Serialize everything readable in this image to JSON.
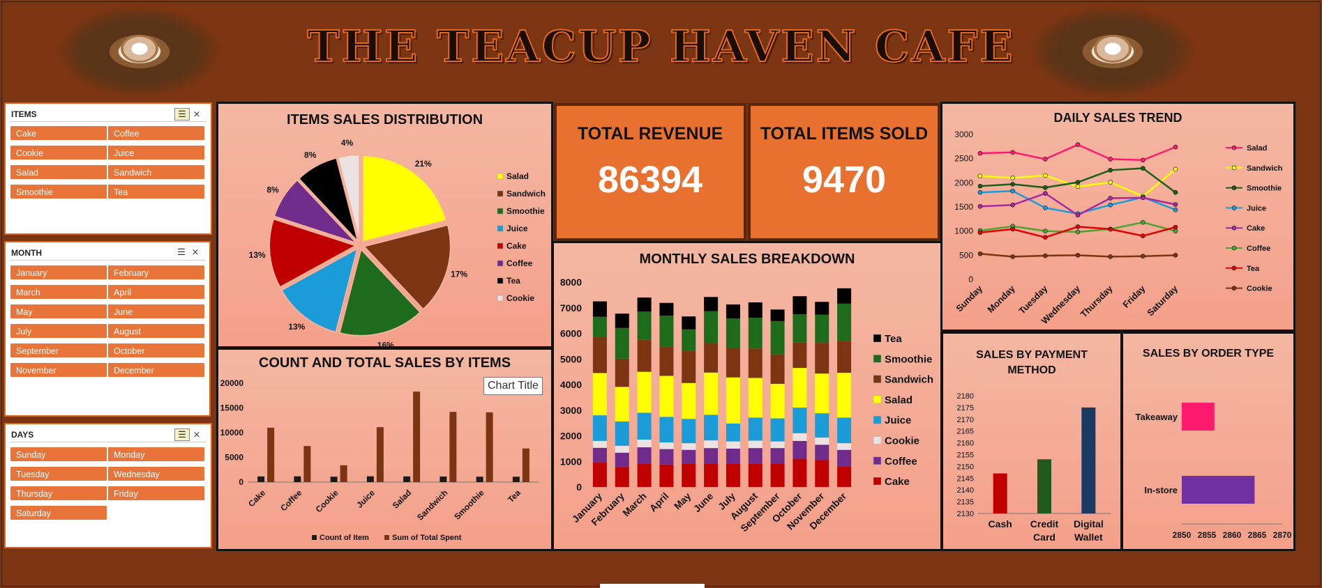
{
  "header": {
    "title": "THE TEACUP HAVEN CAFE"
  },
  "slicers": {
    "items": {
      "label": "ITEMS",
      "options": [
        "Cake",
        "Coffee",
        "Cookie",
        "Juice",
        "Salad",
        "Sandwich",
        "Smoothie",
        "Tea"
      ]
    },
    "month": {
      "label": "MONTH",
      "options": [
        "January",
        "February",
        "March",
        "April",
        "May",
        "June",
        "July",
        "August",
        "September",
        "October",
        "November",
        "December"
      ]
    },
    "days": {
      "label": "DAYS",
      "options": [
        "Sunday",
        "Monday",
        "Tuesday",
        "Wednesday",
        "Thursday",
        "Friday",
        "Saturday"
      ]
    },
    "icons": [
      "multi-select-icon",
      "clear-filter-icon"
    ]
  },
  "kpis": {
    "revenue": {
      "label": "TOTAL REVENUE",
      "value": "86394"
    },
    "items_sold": {
      "label": "TOTAL ITEMS SOLD",
      "value": "9470"
    }
  },
  "tooltip": "Chart Title",
  "colors": {
    "Salad": "#ffff00",
    "Sandwich": "#7b3512",
    "Smoothie": "#1e6b1e",
    "Juice": "#1b9bd8",
    "Cake": "#c00000",
    "Coffee": "#702c8a",
    "Tea": "#000000",
    "Cookie": "#ebe3e3"
  },
  "chart_data": [
    {
      "id": "pie",
      "type": "pie",
      "title": "ITEMS SALES DISTRIBUTION",
      "slices": [
        {
          "label": "Salad",
          "value": 21,
          "text": "21%"
        },
        {
          "label": "Sandwich",
          "value": 17,
          "text": "17%"
        },
        {
          "label": "Smoothie",
          "value": 16,
          "text": "16%"
        },
        {
          "label": "Juice",
          "value": 13,
          "text": "13%"
        },
        {
          "label": "Cake",
          "value": 13,
          "text": "13%"
        },
        {
          "label": "Coffee",
          "value": 8,
          "text": "8%"
        },
        {
          "label": "Tea",
          "value": 8,
          "text": "8%"
        },
        {
          "label": "Cookie",
          "value": 4,
          "text": "4%"
        }
      ],
      "legend": [
        "Salad",
        "Sandwich",
        "Smoothie",
        "Juice",
        "Cake",
        "Coffee",
        "Tea",
        "Cookie"
      ]
    },
    {
      "id": "count",
      "type": "bar",
      "title": "COUNT AND TOTAL SALES BY ITEMS",
      "categories": [
        "Cake",
        "Coffee",
        "Cookie",
        "Juice",
        "Salad",
        "Sandwich",
        "Smoothie",
        "Tea"
      ],
      "series": [
        {
          "name": "Count of Item",
          "values": [
            1139,
            1163,
            1092,
            1171,
            1148,
            1131,
            1096,
            1088
          ],
          "color": "#1a1a1a"
        },
        {
          "name": "Sum of Total Spent",
          "values": [
            11000,
            7300,
            3400,
            11100,
            18300,
            14200,
            14100,
            6800
          ],
          "color": "#7b3512"
        }
      ],
      "ylim": [
        0,
        20000
      ],
      "yticks": [
        "0",
        "5000",
        "10000",
        "15000",
        "20000"
      ],
      "legend_position": "bottom"
    },
    {
      "id": "monthly",
      "type": "bar",
      "stacked": true,
      "title": "MONTHLY SALES BREAKDOWN",
      "categories": [
        "January",
        "February",
        "March",
        "April",
        "May",
        "June",
        "July",
        "August",
        "September",
        "October",
        "November",
        "December"
      ],
      "series": [
        {
          "name": "Cake",
          "values": [
            950,
            780,
            900,
            880,
            900,
            920,
            900,
            900,
            920,
            1100,
            1050,
            800
          ]
        },
        {
          "name": "Coffee",
          "values": [
            580,
            560,
            650,
            600,
            550,
            600,
            600,
            620,
            600,
            700,
            600,
            650
          ]
        },
        {
          "name": "Cookie",
          "values": [
            270,
            270,
            300,
            260,
            260,
            300,
            280,
            290,
            260,
            300,
            280,
            260
          ]
        },
        {
          "name": "Juice",
          "values": [
            1000,
            950,
            1050,
            1000,
            950,
            1000,
            700,
            900,
            900,
            1000,
            950,
            1000
          ]
        },
        {
          "name": "Salad",
          "values": [
            1650,
            1350,
            1600,
            1600,
            1400,
            1650,
            1800,
            1550,
            1350,
            1550,
            1550,
            1750
          ]
        },
        {
          "name": "Sandwich",
          "values": [
            1400,
            1100,
            1250,
            1150,
            1250,
            1150,
            1150,
            1150,
            1150,
            1000,
            1200,
            1250
          ]
        },
        {
          "name": "Smoothie",
          "values": [
            800,
            1200,
            1100,
            1200,
            850,
            1250,
            1150,
            1200,
            1300,
            1100,
            1100,
            1450
          ]
        },
        {
          "name": "Tea",
          "values": [
            600,
            560,
            550,
            500,
            500,
            550,
            550,
            600,
            450,
            700,
            500,
            600
          ]
        }
      ],
      "legend": [
        "Tea",
        "Smoothie",
        "Sandwich",
        "Salad",
        "Juice",
        "Cookie",
        "Coffee",
        "Cake"
      ],
      "ylim": [
        0,
        8000
      ],
      "yticks": [
        "0",
        "1000",
        "2000",
        "3000",
        "4000",
        "5000",
        "6000",
        "7000",
        "8000"
      ]
    },
    {
      "id": "daily",
      "type": "line",
      "title": "DAILY SALES TREND",
      "x": [
        "Sunday",
        "Monday",
        "Tuesday",
        "Wednesday",
        "Thursday",
        "Friday",
        "Saturday"
      ],
      "series": [
        {
          "name": "Salad",
          "values": [
            2610,
            2630,
            2490,
            2790,
            2490,
            2470,
            2740
          ],
          "color": "#ff1a6e"
        },
        {
          "name": "Sandwich",
          "values": [
            2140,
            2100,
            2150,
            1920,
            2010,
            1720,
            2280
          ],
          "color": "#ffff00"
        },
        {
          "name": "Smoothie",
          "values": [
            1930,
            1970,
            1900,
            2010,
            2260,
            2300,
            1800
          ],
          "color": "#1a5e1a"
        },
        {
          "name": "Juice",
          "values": [
            1800,
            1830,
            1480,
            1360,
            1540,
            1700,
            1440
          ],
          "color": "#1b9bd8"
        },
        {
          "name": "Cake",
          "values": [
            1510,
            1540,
            1780,
            1330,
            1680,
            1690,
            1550
          ],
          "color": "#a82a9e"
        },
        {
          "name": "Coffee",
          "values": [
            1010,
            1100,
            1000,
            980,
            1040,
            1180,
            1000
          ],
          "color": "#4aa531"
        },
        {
          "name": "Tea",
          "values": [
            970,
            1040,
            870,
            1090,
            1040,
            900,
            1080
          ],
          "color": "#e00000"
        },
        {
          "name": "Cookie",
          "values": [
            530,
            470,
            490,
            500,
            470,
            480,
            500
          ],
          "color": "#7b3512"
        }
      ],
      "ylim": [
        0,
        3000
      ],
      "yticks": [
        "0",
        "500",
        "1000",
        "1500",
        "2000",
        "2500",
        "3000"
      ]
    },
    {
      "id": "payment",
      "type": "bar",
      "title": "SALES BY  PAYMENT METHOD",
      "categories": [
        "Cash",
        "Credit Card",
        "Digital Wallet"
      ],
      "category_lines": [
        [
          "Cash"
        ],
        [
          "Credit",
          "Card"
        ],
        [
          "Digital",
          "Wallet"
        ]
      ],
      "values": [
        2147,
        2153,
        2175
      ],
      "colors": [
        "#c00000",
        "#1e5a1e",
        "#1a3a64"
      ],
      "ylim": [
        2130,
        2180
      ],
      "yticks": [
        "2130",
        "2135",
        "2140",
        "2145",
        "2150",
        "2155",
        "2160",
        "2165",
        "2170",
        "2175",
        "2180"
      ]
    },
    {
      "id": "ordertype",
      "type": "bar",
      "orientation": "horizontal",
      "title": "SALES BY  ORDER TYPE",
      "categories": [
        "Takeaway",
        "In-store"
      ],
      "values": [
        2856.5,
        2864.5
      ],
      "colors": [
        "#ff1a6e",
        "#7030a0"
      ],
      "xlim": [
        2850,
        2870
      ],
      "xticks": [
        "2850",
        "2855",
        "2860",
        "2865",
        "2870"
      ]
    }
  ]
}
